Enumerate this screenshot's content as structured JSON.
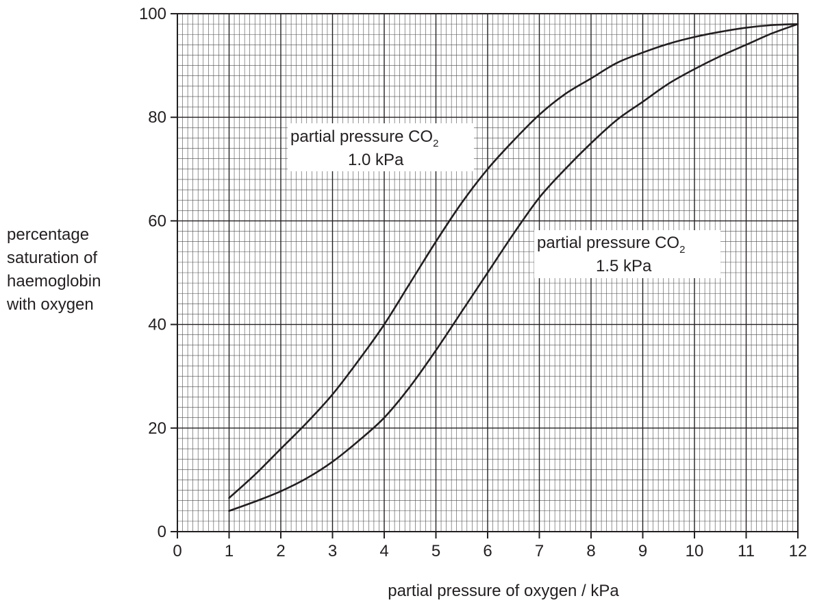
{
  "chart_data": {
    "type": "line",
    "title": "",
    "xlabel": "partial pressure of oxygen / kPa",
    "ylabel_lines": [
      "percentage",
      "saturation of",
      "haemoglobin",
      "with oxygen"
    ],
    "xlim": [
      0,
      12
    ],
    "ylim": [
      0,
      100
    ],
    "x_ticks": [
      "0",
      "1",
      "2",
      "3",
      "4",
      "5",
      "6",
      "7",
      "8",
      "9",
      "10",
      "11",
      "12"
    ],
    "y_ticks": [
      "0",
      "20",
      "40",
      "60",
      "80",
      "100"
    ],
    "grid": true,
    "series": [
      {
        "name_main": "partial pressure CO",
        "name_sub": "2",
        "name_value": "1.0 kPa",
        "x": [
          1,
          1.5,
          2,
          2.5,
          3,
          3.5,
          4,
          4.5,
          5,
          5.5,
          6,
          6.5,
          7,
          7.5,
          8,
          8.5,
          9,
          9.5,
          10,
          10.5,
          11,
          11.5,
          12
        ],
        "y": [
          6.5,
          11,
          16,
          21,
          26.5,
          33,
          40,
          48,
          56,
          63.5,
          70,
          75.5,
          80.5,
          84.5,
          87.5,
          90.5,
          92.5,
          94.2,
          95.5,
          96.5,
          97.3,
          97.8,
          98
        ]
      },
      {
        "name_main": "partial pressure CO",
        "name_sub": "2",
        "name_value": "1.5 kPa",
        "x": [
          1,
          1.5,
          2,
          2.5,
          3,
          3.5,
          4,
          4.5,
          5,
          5.5,
          6,
          6.5,
          7,
          7.5,
          8,
          8.5,
          9,
          9.5,
          10,
          10.5,
          11,
          11.5,
          12
        ],
        "y": [
          4,
          5.8,
          7.8,
          10.3,
          13.5,
          17.5,
          22,
          28,
          35,
          42.5,
          50,
          57.5,
          64.5,
          70,
          75,
          79.5,
          83,
          86.5,
          89.3,
          91.8,
          94,
          96.2,
          98
        ]
      }
    ]
  }
}
